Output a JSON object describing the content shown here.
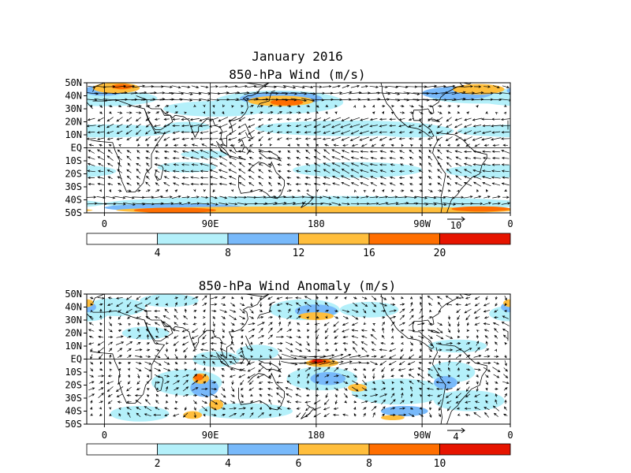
{
  "title_main": "January 2016",
  "palette": [
    "#ffffff",
    "#b4f0fa",
    "#78b9fa",
    "#ffbe3c",
    "#ff6e00",
    "#e61400"
  ],
  "panels": [
    {
      "id": "mean",
      "title": "850-hPa Wind (m/s)",
      "lat_labels": [
        "50N",
        "40N",
        "30N",
        "20N",
        "10N",
        "EQ",
        "10S",
        "20S",
        "30S",
        "40S",
        "50S"
      ],
      "lon_labels": [
        "0",
        "90E",
        "180",
        "90W",
        "0"
      ],
      "ref_vector": "10",
      "colorbar_labels": [
        "4",
        "8",
        "12",
        "16",
        "20"
      ],
      "blobs": [
        {
          "c": 1,
          "lon": 0,
          "lat": 38,
          "rx": 45,
          "ry": 6
        },
        {
          "c": 1,
          "lon": 0,
          "lat": 13,
          "rx": 60,
          "ry": 5
        },
        {
          "c": 1,
          "lon": 70,
          "lat": 16,
          "rx": 20,
          "ry": 4
        },
        {
          "c": 1,
          "lon": 95,
          "lat": 30,
          "rx": 45,
          "ry": 6
        },
        {
          "c": 1,
          "lon": 148,
          "lat": 35,
          "rx": 55,
          "ry": 9
        },
        {
          "c": 1,
          "lon": 208,
          "lat": 15,
          "rx": 80,
          "ry": 6
        },
        {
          "c": 1,
          "lon": 262,
          "lat": 13,
          "rx": 35,
          "ry": 5
        },
        {
          "c": 1,
          "lon": 330,
          "lat": 13,
          "rx": 30,
          "ry": 4
        },
        {
          "c": 1,
          "lon": 320,
          "lat": 40,
          "rx": 45,
          "ry": 6
        },
        {
          "c": 1,
          "lon": 85,
          "lat": -5,
          "rx": 20,
          "ry": 3
        },
        {
          "c": 1,
          "lon": 70,
          "lat": -15,
          "rx": 25,
          "ry": 4
        },
        {
          "c": 1,
          "lon": 215,
          "lat": -17,
          "rx": 55,
          "ry": 6
        },
        {
          "c": 1,
          "lon": 330,
          "lat": -18,
          "rx": 40,
          "ry": 5
        },
        {
          "c": 1,
          "lon": 180,
          "lat": -43,
          "rx": 180,
          "ry": 6
        },
        {
          "c": 2,
          "lon": 0,
          "lat": 44,
          "rx": 18,
          "ry": 4
        },
        {
          "c": 2,
          "lon": 300,
          "lat": 42,
          "rx": 30,
          "ry": 5
        },
        {
          "c": 2,
          "lon": 150,
          "lat": 38,
          "rx": 35,
          "ry": 5
        },
        {
          "c": 2,
          "lon": 60,
          "lat": -46,
          "rx": 60,
          "ry": 3
        },
        {
          "c": 3,
          "lon": 150,
          "lat": 36,
          "rx": 28,
          "ry": 4
        },
        {
          "c": 3,
          "lon": 10,
          "lat": 46,
          "rx": 20,
          "ry": 4
        },
        {
          "c": 3,
          "lon": 318,
          "lat": 45,
          "rx": 22,
          "ry": 4
        },
        {
          "c": 3,
          "lon": 180,
          "lat": -48,
          "rx": 170,
          "ry": 3
        },
        {
          "c": 4,
          "lon": 155,
          "lat": 35,
          "rx": 14,
          "ry": 2.5
        },
        {
          "c": 4,
          "lon": 15,
          "lat": 47,
          "rx": 9,
          "ry": 2
        },
        {
          "c": 4,
          "lon": 60,
          "lat": -48,
          "rx": 35,
          "ry": 2
        },
        {
          "c": 4,
          "lon": 320,
          "lat": -47,
          "rx": 25,
          "ry": 2
        }
      ],
      "vector_field": "mean"
    },
    {
      "id": "anomaly",
      "title": "850-hPa Wind Anomaly (m/s)",
      "lat_labels": [
        "50N",
        "40N",
        "30N",
        "20N",
        "10N",
        "EQ",
        "10S",
        "20S",
        "30S",
        "40S",
        "50S"
      ],
      "lon_labels": [
        "0",
        "90E",
        "180",
        "90W",
        "0"
      ],
      "ref_vector": "4",
      "colorbar_labels": [
        "2",
        "4",
        "6",
        "8",
        "10"
      ],
      "blobs": [
        {
          "c": 1,
          "lon": 10,
          "lat": 40,
          "rx": 25,
          "ry": 7
        },
        {
          "c": 1,
          "lon": 55,
          "lat": 45,
          "rx": 25,
          "ry": 5
        },
        {
          "c": 1,
          "lon": 35,
          "lat": 20,
          "rx": 20,
          "ry": 5
        },
        {
          "c": 1,
          "lon": 95,
          "lat": 0,
          "rx": 20,
          "ry": 6
        },
        {
          "c": 1,
          "lon": 130,
          "lat": 5,
          "rx": 18,
          "ry": 6
        },
        {
          "c": 1,
          "lon": 170,
          "lat": 38,
          "rx": 30,
          "ry": 8
        },
        {
          "c": 1,
          "lon": 225,
          "lat": 38,
          "rx": 25,
          "ry": 6
        },
        {
          "c": 1,
          "lon": 300,
          "lat": 10,
          "rx": 25,
          "ry": 5
        },
        {
          "c": 1,
          "lon": 345,
          "lat": 35,
          "rx": 18,
          "ry": 6
        },
        {
          "c": 1,
          "lon": 70,
          "lat": -18,
          "rx": 30,
          "ry": 10
        },
        {
          "c": 1,
          "lon": 185,
          "lat": -15,
          "rx": 30,
          "ry": 9
        },
        {
          "c": 1,
          "lon": 250,
          "lat": -25,
          "rx": 40,
          "ry": 10
        },
        {
          "c": 1,
          "lon": 295,
          "lat": -10,
          "rx": 20,
          "ry": 8
        },
        {
          "c": 1,
          "lon": 310,
          "lat": -32,
          "rx": 30,
          "ry": 8
        },
        {
          "c": 1,
          "lon": 120,
          "lat": -40,
          "rx": 40,
          "ry": 6
        },
        {
          "c": 1,
          "lon": 30,
          "lat": -42,
          "rx": 25,
          "ry": 6
        },
        {
          "c": 2,
          "lon": 85,
          "lat": -22,
          "rx": 12,
          "ry": 7
        },
        {
          "c": 2,
          "lon": 180,
          "lat": 37,
          "rx": 18,
          "ry": 5
        },
        {
          "c": 2,
          "lon": 190,
          "lat": -15,
          "rx": 15,
          "ry": 5
        },
        {
          "c": 2,
          "lon": 290,
          "lat": -18,
          "rx": 10,
          "ry": 5
        },
        {
          "c": 2,
          "lon": 345,
          "lat": 40,
          "rx": 8,
          "ry": 4
        },
        {
          "c": 2,
          "lon": 255,
          "lat": -40,
          "rx": 20,
          "ry": 4
        },
        {
          "c": 3,
          "lon": 82,
          "lat": -15,
          "rx": 7,
          "ry": 4
        },
        {
          "c": 3,
          "lon": 95,
          "lat": -35,
          "rx": 6,
          "ry": 4
        },
        {
          "c": 3,
          "lon": 180,
          "lat": 33,
          "rx": 15,
          "ry": 3
        },
        {
          "c": 3,
          "lon": 185,
          "lat": -3,
          "rx": 14,
          "ry": 3
        },
        {
          "c": 3,
          "lon": 215,
          "lat": -22,
          "rx": 8,
          "ry": 3
        },
        {
          "c": 3,
          "lon": 75,
          "lat": -43,
          "rx": 8,
          "ry": 3
        },
        {
          "c": 3,
          "lon": 345,
          "lat": 43,
          "rx": 6,
          "ry": 3
        },
        {
          "c": 3,
          "lon": 245,
          "lat": -45,
          "rx": 10,
          "ry": 2
        },
        {
          "c": 4,
          "lon": 80,
          "lat": -14,
          "rx": 4,
          "ry": 2.5
        },
        {
          "c": 4,
          "lon": 183,
          "lat": -2,
          "rx": 9,
          "ry": 2
        },
        {
          "c": 5,
          "lon": 181,
          "lat": -1.5,
          "rx": 5,
          "ry": 1.3
        }
      ],
      "vector_field": "anomaly"
    }
  ]
}
